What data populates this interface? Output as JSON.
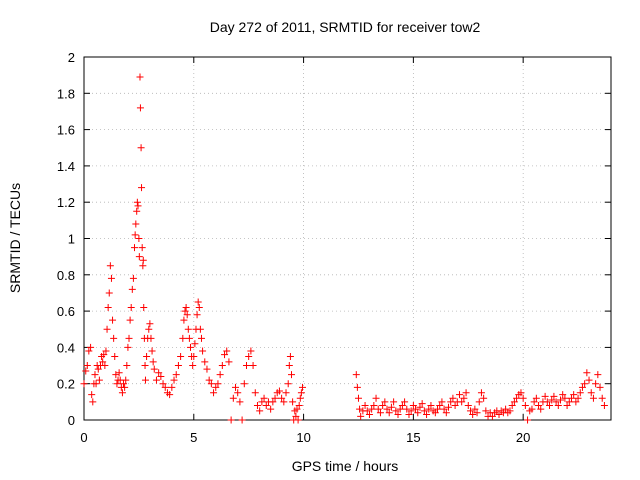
{
  "chart_data": {
    "type": "scatter",
    "title": "Day 272 of 2011, SRMTID for receiver tow2",
    "xlabel": "GPS time / hours",
    "ylabel": "SRMTID / TECUs",
    "xlim": [
      0,
      24
    ],
    "ylim": [
      0,
      2
    ],
    "xticks": [
      0,
      5,
      10,
      15,
      20
    ],
    "yticks": [
      0,
      0.2,
      0.4,
      0.6,
      0.8,
      1,
      1.2,
      1.4,
      1.6,
      1.8,
      2
    ],
    "xtick_labels": [
      "0",
      "5",
      "10",
      "15",
      "20"
    ],
    "ytick_labels": [
      "0",
      "0.2",
      "0.4",
      "0.6",
      "0.8",
      "1",
      "1.2",
      "1.4",
      "1.6",
      "1.8",
      "2"
    ],
    "grid": true,
    "marker": "plus",
    "color": "#ff0000",
    "series": [
      {
        "points": [
          [
            0.0,
            0.2
          ],
          [
            0.08,
            0.27
          ],
          [
            0.15,
            0.3
          ],
          [
            0.22,
            0.38
          ],
          [
            0.3,
            0.4
          ],
          [
            0.35,
            0.14
          ],
          [
            0.4,
            0.1
          ],
          [
            0.45,
            0.2
          ],
          [
            0.5,
            0.25
          ],
          [
            0.55,
            0.2
          ],
          [
            0.6,
            0.3
          ],
          [
            0.65,
            0.28
          ],
          [
            0.7,
            0.22
          ],
          [
            0.75,
            0.3
          ],
          [
            0.8,
            0.35
          ],
          [
            0.85,
            0.32
          ],
          [
            0.9,
            0.36
          ],
          [
            0.95,
            0.3
          ],
          [
            1.0,
            0.38
          ],
          [
            1.05,
            0.5
          ],
          [
            1.1,
            0.62
          ],
          [
            1.15,
            0.7
          ],
          [
            1.2,
            0.85
          ],
          [
            1.25,
            0.78
          ],
          [
            1.3,
            0.55
          ],
          [
            1.35,
            0.45
          ],
          [
            1.4,
            0.35
          ],
          [
            1.45,
            0.25
          ],
          [
            1.5,
            0.2
          ],
          [
            1.55,
            0.22
          ],
          [
            1.6,
            0.26
          ],
          [
            1.65,
            0.22
          ],
          [
            1.7,
            0.18
          ],
          [
            1.75,
            0.15
          ],
          [
            1.8,
            0.2
          ],
          [
            1.85,
            0.18
          ],
          [
            1.9,
            0.22
          ],
          [
            1.95,
            0.3
          ],
          [
            2.0,
            0.4
          ],
          [
            2.05,
            0.45
          ],
          [
            2.1,
            0.55
          ],
          [
            2.15,
            0.62
          ],
          [
            2.2,
            0.72
          ],
          [
            2.25,
            0.78
          ],
          [
            2.3,
            0.95
          ],
          [
            2.33,
            1.02
          ],
          [
            2.36,
            1.08
          ],
          [
            2.4,
            1.15
          ],
          [
            2.43,
            1.2
          ],
          [
            2.46,
            1.18
          ],
          [
            2.5,
            1.0
          ],
          [
            2.52,
            0.9
          ],
          [
            2.55,
            1.89
          ],
          [
            2.57,
            1.72
          ],
          [
            2.6,
            1.5
          ],
          [
            2.62,
            1.28
          ],
          [
            2.65,
            0.95
          ],
          [
            2.68,
            0.85
          ],
          [
            2.7,
            0.88
          ],
          [
            2.72,
            0.62
          ],
          [
            2.75,
            0.45
          ],
          [
            2.78,
            0.3
          ],
          [
            2.8,
            0.22
          ],
          [
            2.85,
            0.35
          ],
          [
            2.9,
            0.45
          ],
          [
            2.95,
            0.5
          ],
          [
            3.0,
            0.53
          ],
          [
            3.05,
            0.45
          ],
          [
            3.1,
            0.38
          ],
          [
            3.15,
            0.32
          ],
          [
            3.2,
            0.28
          ],
          [
            3.3,
            0.22
          ],
          [
            3.4,
            0.26
          ],
          [
            3.5,
            0.24
          ],
          [
            3.6,
            0.2
          ],
          [
            3.7,
            0.18
          ],
          [
            3.8,
            0.15
          ],
          [
            3.9,
            0.14
          ],
          [
            4.0,
            0.18
          ],
          [
            4.1,
            0.22
          ],
          [
            4.2,
            0.25
          ],
          [
            4.3,
            0.3
          ],
          [
            4.4,
            0.35
          ],
          [
            4.5,
            0.45
          ],
          [
            4.55,
            0.55
          ],
          [
            4.6,
            0.6
          ],
          [
            4.65,
            0.62
          ],
          [
            4.7,
            0.58
          ],
          [
            4.75,
            0.5
          ],
          [
            4.8,
            0.45
          ],
          [
            4.85,
            0.4
          ],
          [
            4.9,
            0.35
          ],
          [
            4.95,
            0.3
          ],
          [
            5.0,
            0.35
          ],
          [
            5.05,
            0.42
          ],
          [
            5.1,
            0.5
          ],
          [
            5.15,
            0.58
          ],
          [
            5.2,
            0.65
          ],
          [
            5.25,
            0.62
          ],
          [
            5.3,
            0.5
          ],
          [
            5.35,
            0.45
          ],
          [
            5.4,
            0.38
          ],
          [
            5.5,
            0.32
          ],
          [
            5.6,
            0.28
          ],
          [
            5.7,
            0.22
          ],
          [
            5.8,
            0.2
          ],
          [
            5.9,
            0.15
          ],
          [
            6.0,
            0.18
          ],
          [
            6.1,
            0.2
          ],
          [
            6.2,
            0.25
          ],
          [
            6.3,
            0.3
          ],
          [
            6.4,
            0.36
          ],
          [
            6.5,
            0.38
          ],
          [
            6.6,
            0.32
          ],
          [
            6.7,
            0.0
          ],
          [
            6.8,
            0.12
          ],
          [
            6.9,
            0.18
          ],
          [
            7.0,
            0.15
          ],
          [
            7.1,
            0.1
          ],
          [
            7.2,
            0.0
          ],
          [
            7.3,
            0.2
          ],
          [
            7.4,
            0.3
          ],
          [
            7.5,
            0.35
          ],
          [
            7.6,
            0.38
          ],
          [
            7.7,
            0.3
          ],
          [
            7.8,
            0.15
          ],
          [
            7.9,
            0.08
          ],
          [
            8.0,
            0.05
          ],
          [
            8.1,
            0.1
          ],
          [
            8.2,
            0.12
          ],
          [
            8.3,
            0.08
          ],
          [
            8.4,
            0.1
          ],
          [
            8.5,
            0.06
          ],
          [
            8.6,
            0.1
          ],
          [
            8.7,
            0.12
          ],
          [
            8.8,
            0.15
          ],
          [
            8.9,
            0.16
          ],
          [
            9.0,
            0.12
          ],
          [
            9.1,
            0.1
          ],
          [
            9.2,
            0.15
          ],
          [
            9.3,
            0.2
          ],
          [
            9.35,
            0.3
          ],
          [
            9.4,
            0.35
          ],
          [
            9.45,
            0.25
          ],
          [
            9.5,
            0.1
          ],
          [
            9.55,
            0.0
          ],
          [
            9.6,
            0.05
          ],
          [
            9.65,
            0.02
          ],
          [
            9.7,
            0.06
          ],
          [
            9.75,
            0.0
          ],
          [
            9.8,
            0.08
          ],
          [
            9.85,
            0.12
          ],
          [
            9.9,
            0.15
          ],
          [
            9.95,
            0.18
          ],
          [
            12.4,
            0.25
          ],
          [
            12.45,
            0.18
          ],
          [
            12.5,
            0.12
          ],
          [
            12.55,
            0.06
          ],
          [
            12.6,
            0.02
          ],
          [
            12.7,
            0.05
          ],
          [
            12.8,
            0.08
          ],
          [
            12.9,
            0.05
          ],
          [
            13.0,
            0.03
          ],
          [
            13.1,
            0.06
          ],
          [
            13.2,
            0.08
          ],
          [
            13.3,
            0.12
          ],
          [
            13.4,
            0.06
          ],
          [
            13.5,
            0.04
          ],
          [
            13.6,
            0.08
          ],
          [
            13.7,
            0.1
          ],
          [
            13.8,
            0.06
          ],
          [
            13.9,
            0.04
          ],
          [
            14.0,
            0.07
          ],
          [
            14.1,
            0.1
          ],
          [
            14.2,
            0.05
          ],
          [
            14.3,
            0.03
          ],
          [
            14.4,
            0.06
          ],
          [
            14.5,
            0.08
          ],
          [
            14.6,
            0.1
          ],
          [
            14.7,
            0.06
          ],
          [
            14.8,
            0.03
          ],
          [
            14.9,
            0.05
          ],
          [
            15.0,
            0.08
          ],
          [
            15.1,
            0.06
          ],
          [
            15.2,
            0.04
          ],
          [
            15.3,
            0.07
          ],
          [
            15.4,
            0.09
          ],
          [
            15.5,
            0.05
          ],
          [
            15.6,
            0.03
          ],
          [
            15.7,
            0.06
          ],
          [
            15.8,
            0.08
          ],
          [
            15.9,
            0.05
          ],
          [
            16.0,
            0.04
          ],
          [
            16.1,
            0.06
          ],
          [
            16.2,
            0.08
          ],
          [
            16.3,
            0.1
          ],
          [
            16.4,
            0.06
          ],
          [
            16.5,
            0.04
          ],
          [
            16.6,
            0.07
          ],
          [
            16.7,
            0.1
          ],
          [
            16.8,
            0.12
          ],
          [
            16.9,
            0.08
          ],
          [
            17.0,
            0.1
          ],
          [
            17.1,
            0.14
          ],
          [
            17.2,
            0.1
          ],
          [
            17.3,
            0.12
          ],
          [
            17.4,
            0.15
          ],
          [
            17.5,
            0.08
          ],
          [
            17.6,
            0.05
          ],
          [
            17.7,
            0.03
          ],
          [
            17.8,
            0.06
          ],
          [
            17.9,
            0.04
          ],
          [
            18.0,
            0.1
          ],
          [
            18.1,
            0.15
          ],
          [
            18.2,
            0.12
          ],
          [
            18.3,
            0.05
          ],
          [
            18.4,
            0.02
          ],
          [
            18.5,
            0.04
          ],
          [
            18.6,
            0.02
          ],
          [
            18.7,
            0.04
          ],
          [
            18.8,
            0.05
          ],
          [
            18.9,
            0.03
          ],
          [
            19.0,
            0.05
          ],
          [
            19.1,
            0.04
          ],
          [
            19.2,
            0.06
          ],
          [
            19.3,
            0.04
          ],
          [
            19.4,
            0.05
          ],
          [
            19.5,
            0.08
          ],
          [
            19.6,
            0.1
          ],
          [
            19.7,
            0.12
          ],
          [
            19.8,
            0.14
          ],
          [
            19.9,
            0.15
          ],
          [
            20.0,
            0.12
          ],
          [
            20.1,
            0.08
          ],
          [
            20.2,
            0.0
          ],
          [
            20.3,
            0.05
          ],
          [
            20.4,
            0.06
          ],
          [
            20.5,
            0.1
          ],
          [
            20.6,
            0.12
          ],
          [
            20.7,
            0.08
          ],
          [
            20.8,
            0.06
          ],
          [
            20.9,
            0.1
          ],
          [
            21.0,
            0.13
          ],
          [
            21.1,
            0.1
          ],
          [
            21.2,
            0.08
          ],
          [
            21.3,
            0.11
          ],
          [
            21.4,
            0.13
          ],
          [
            21.5,
            0.1
          ],
          [
            21.6,
            0.08
          ],
          [
            21.7,
            0.11
          ],
          [
            21.8,
            0.14
          ],
          [
            21.9,
            0.12
          ],
          [
            22.0,
            0.08
          ],
          [
            22.1,
            0.1
          ],
          [
            22.2,
            0.12
          ],
          [
            22.3,
            0.14
          ],
          [
            22.4,
            0.1
          ],
          [
            22.5,
            0.12
          ],
          [
            22.6,
            0.15
          ],
          [
            22.7,
            0.18
          ],
          [
            22.8,
            0.2
          ],
          [
            22.9,
            0.26
          ],
          [
            23.0,
            0.22
          ],
          [
            23.1,
            0.15
          ],
          [
            23.2,
            0.12
          ],
          [
            23.3,
            0.2
          ],
          [
            23.4,
            0.25
          ],
          [
            23.5,
            0.18
          ],
          [
            23.6,
            0.12
          ],
          [
            23.7,
            0.08
          ]
        ]
      }
    ]
  }
}
